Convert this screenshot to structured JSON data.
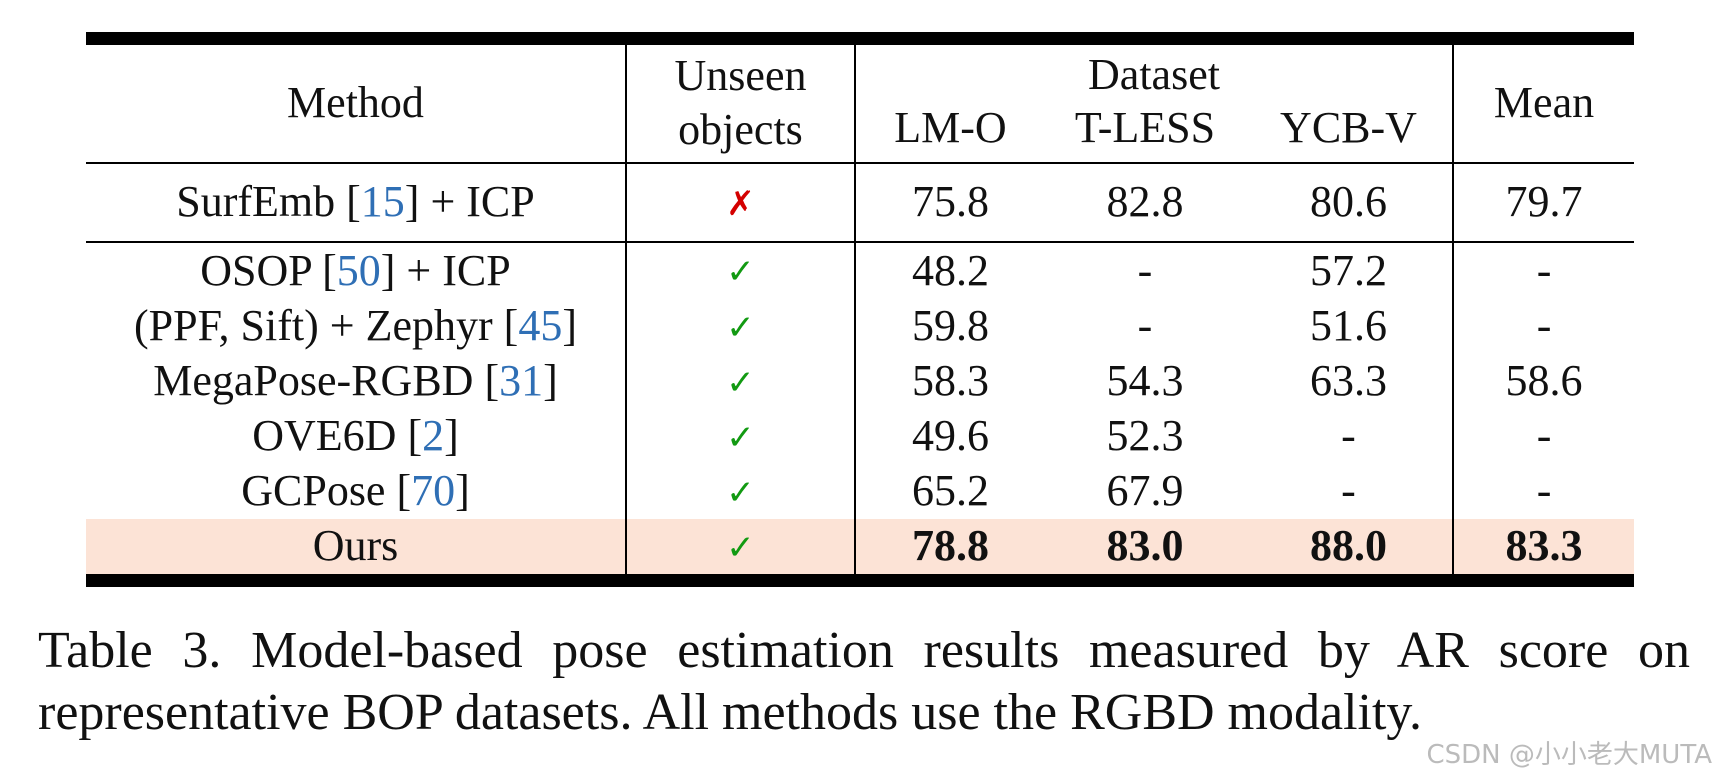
{
  "table": {
    "header": {
      "method": "Method",
      "unseen": "Unseen objects",
      "dataset": "Dataset",
      "columns": [
        "LM-O",
        "T-LESS",
        "YCB-V"
      ],
      "mean": "Mean"
    },
    "rows": [
      {
        "pre": "SurfEmb [",
        "ref": "15",
        "post": "] + ICP",
        "unseen": "✗",
        "values": [
          "75.8",
          "82.8",
          "80.6"
        ],
        "mean": "79.7"
      },
      {
        "pre": "OSOP [",
        "ref": "50",
        "post": "] + ICP",
        "unseen": "✓",
        "values": [
          "48.2",
          "-",
          "57.2"
        ],
        "mean": "-"
      },
      {
        "pre": "(PPF, Sift) + Zephyr [",
        "ref": "45",
        "post": "]",
        "unseen": "✓",
        "values": [
          "59.8",
          "-",
          "51.6"
        ],
        "mean": "-"
      },
      {
        "pre": "MegaPose-RGBD [",
        "ref": "31",
        "post": "]",
        "unseen": "✓",
        "values": [
          "58.3",
          "54.3",
          "63.3"
        ],
        "mean": "58.6"
      },
      {
        "pre": "OVE6D [",
        "ref": "2",
        "post": "]",
        "unseen": "✓",
        "values": [
          "49.6",
          "52.3",
          "-"
        ],
        "mean": "-"
      },
      {
        "pre": "GCPose [",
        "ref": "70",
        "post": "]",
        "unseen": "✓",
        "values": [
          "65.2",
          "67.9",
          "-"
        ],
        "mean": "-"
      },
      {
        "pre": "Ours",
        "unseen": "✓",
        "values": [
          "78.8",
          "83.0",
          "88.0"
        ],
        "mean": "83.3",
        "highlight": true
      }
    ]
  },
  "caption": "Table 3. Model-based pose estimation results measured by AR score on representative BOP datasets. All methods use the RGBD modality.",
  "watermark": "CSDN @小小老大MUTA"
}
